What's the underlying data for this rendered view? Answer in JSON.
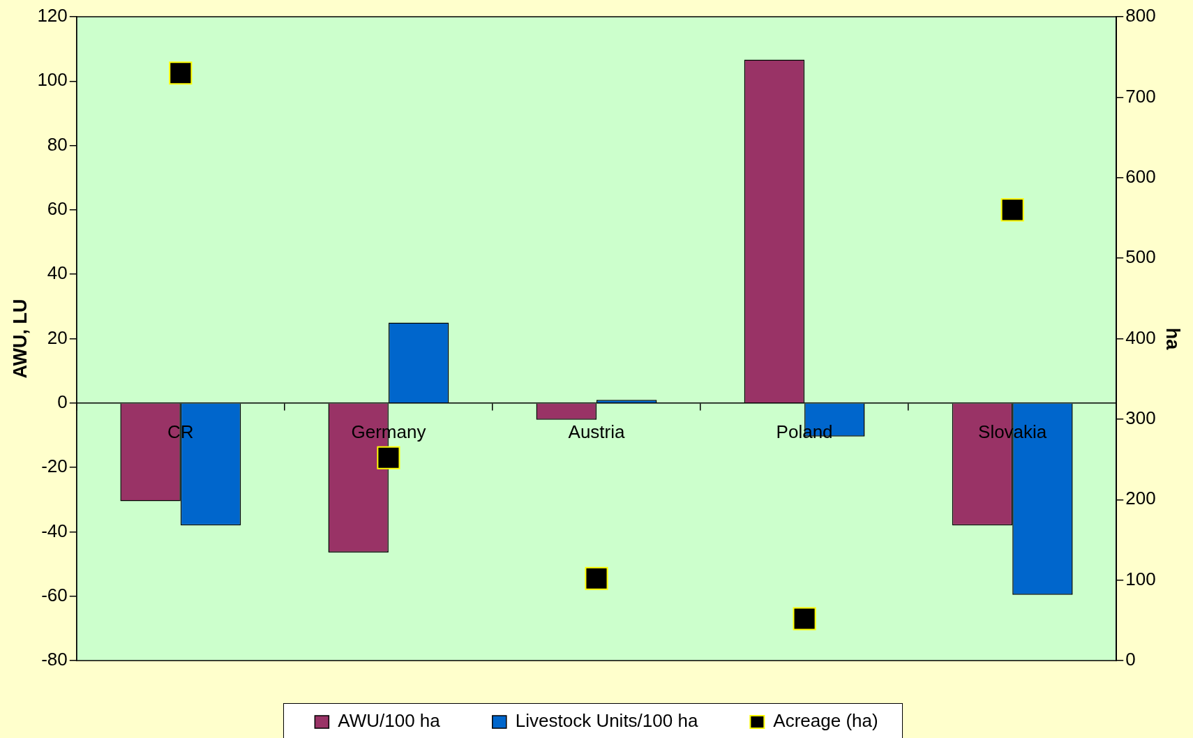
{
  "chart_data": {
    "type": "bar",
    "categories": [
      "CR",
      "Germany",
      "Austria",
      "Poland",
      "Slovakia"
    ],
    "series": [
      {
        "name": "AWU/100 ha",
        "color": "#993366",
        "values": [
          -30.5,
          -46.4,
          -5.2,
          106.7,
          -38
        ]
      },
      {
        "name": "Livestock Units/100 ha",
        "color": "#0066cc",
        "values": [
          -38,
          25,
          1,
          -10.4,
          -59.6
        ]
      },
      {
        "name": "Acreage (ha)",
        "type": "scatter",
        "axis": "y2",
        "marker": "square",
        "color": "#000000",
        "values": [
          730,
          252,
          102,
          52,
          560
        ]
      }
    ],
    "ylabel": "AWU, LU",
    "y2label": "ha",
    "ylim": [
      -80,
      120
    ],
    "yticks": [
      -80,
      -60,
      -40,
      -20,
      0,
      20,
      40,
      60,
      80,
      100,
      120
    ],
    "y2lim": [
      0,
      800
    ],
    "y2ticks": [
      0,
      100,
      200,
      300,
      400,
      500,
      600,
      700,
      800
    ],
    "grid": false,
    "legend": "bottom"
  }
}
